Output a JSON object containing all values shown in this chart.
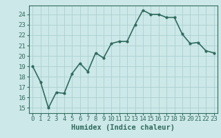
{
  "x": [
    0,
    1,
    2,
    3,
    4,
    5,
    6,
    7,
    8,
    9,
    10,
    11,
    12,
    13,
    14,
    15,
    16,
    17,
    18,
    19,
    20,
    21,
    22,
    23
  ],
  "y": [
    19.0,
    17.5,
    15.0,
    16.5,
    16.4,
    18.3,
    19.3,
    18.5,
    20.3,
    19.8,
    21.2,
    21.4,
    21.4,
    23.0,
    24.4,
    24.0,
    24.0,
    23.7,
    23.7,
    22.1,
    21.2,
    21.3,
    20.5,
    20.3
  ],
  "line_color": "#2e6b5e",
  "marker": "o",
  "marker_size": 2.0,
  "bg_color": "#cde8e8",
  "grid_color": "#aacfcf",
  "xlabel": "Humidex (Indice chaleur)",
  "ylabel": "",
  "xlim": [
    -0.5,
    23.5
  ],
  "ylim": [
    14.5,
    24.85
  ],
  "yticks": [
    15,
    16,
    17,
    18,
    19,
    20,
    21,
    22,
    23,
    24
  ],
  "xticks": [
    0,
    1,
    2,
    3,
    4,
    5,
    6,
    7,
    8,
    9,
    10,
    11,
    12,
    13,
    14,
    15,
    16,
    17,
    18,
    19,
    20,
    21,
    22,
    23
  ],
  "tick_fontsize": 6.5,
  "xlabel_fontsize": 7.5,
  "linewidth": 1.2
}
